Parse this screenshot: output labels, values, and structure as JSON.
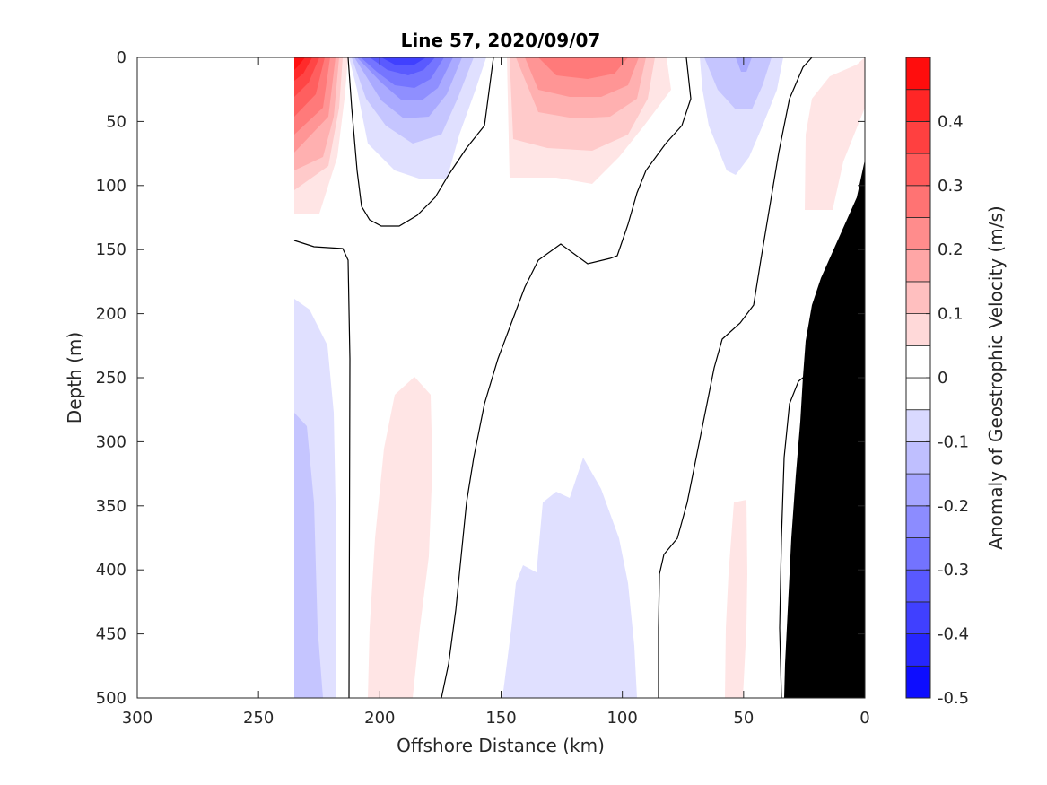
{
  "chart_data": {
    "type": "heatmap",
    "title": "Line 57, 2020/09/07",
    "xlabel": "Offshore Distance (km)",
    "ylabel": "Depth (m)",
    "xlim": [
      300,
      0
    ],
    "ylim": [
      0,
      500
    ],
    "x_reversed": true,
    "y_reversed": true,
    "x_ticks": [
      "300",
      "250",
      "200",
      "150",
      "100",
      "50",
      "0"
    ],
    "y_ticks": [
      "0",
      "50",
      "100",
      "150",
      "200",
      "250",
      "300",
      "350",
      "400",
      "450",
      "500"
    ],
    "colorbar": {
      "label": "Anomaly of Geostrophic Velocity (m/s)",
      "range": [
        -0.5,
        0.5
      ],
      "step": 0.05,
      "tick_labels": [
        "0.4",
        "0.3",
        "0.2",
        "0.1",
        "0",
        "-0.1",
        "-0.2",
        "-0.3",
        "-0.4",
        "-0.5"
      ],
      "colormap": "blue-white-red",
      "low_color": "#0000ff",
      "high_color": "#ff0000",
      "mid_color": "#ffffff"
    },
    "zero_contour": true,
    "topography_color": "#000000",
    "data_extent_x": [
      235,
      0
    ],
    "regions": [
      {
        "sign": "positive",
        "peak": 0.48,
        "x_range": [
          235,
          218
        ],
        "depth_range": [
          0,
          120
        ]
      },
      {
        "sign": "negative",
        "peak": -0.35,
        "x_range": [
          213,
          163
        ],
        "depth_range": [
          0,
          95
        ]
      },
      {
        "sign": "positive",
        "peak": 0.22,
        "x_range": [
          150,
          80
        ],
        "depth_range": [
          0,
          100
        ]
      },
      {
        "sign": "negative",
        "peak": -0.12,
        "x_range": [
          68,
          35
        ],
        "depth_range": [
          0,
          90
        ]
      },
      {
        "sign": "positive",
        "peak": 0.08,
        "x_range": [
          25,
          0
        ],
        "depth_range": [
          0,
          120
        ]
      },
      {
        "sign": "negative",
        "peak": -0.15,
        "x_range": [
          235,
          218
        ],
        "depth_range": [
          190,
          500
        ]
      },
      {
        "sign": "positive",
        "peak": 0.08,
        "x_range": [
          205,
          178
        ],
        "depth_range": [
          200,
          500
        ]
      },
      {
        "sign": "negative",
        "peak": -0.08,
        "x_range": [
          148,
          95
        ],
        "depth_range": [
          310,
          500
        ]
      },
      {
        "sign": "positive",
        "peak": 0.06,
        "x_range": [
          56,
          46
        ],
        "depth_range": [
          345,
          500
        ]
      }
    ]
  }
}
